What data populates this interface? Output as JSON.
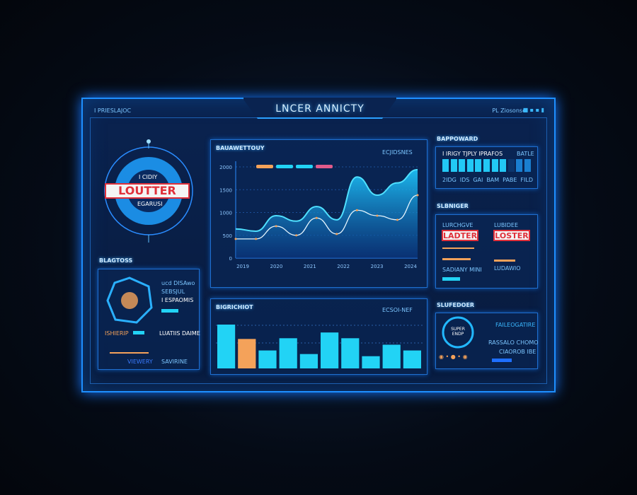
{
  "header": {
    "title": "LNCER ANNICTY",
    "left_label": "I PRIESLAJOC",
    "right_label": "PL Ziosonse"
  },
  "left": {
    "logo": {
      "top": "I CIDIY",
      "main": "LOUTTER",
      "bottom": "EGARUSI"
    },
    "section_title": "BLAGTOSS",
    "card": {
      "lines": [
        "ucd DISAwo",
        "SEBSJUL",
        "I ESPAOMIS"
      ],
      "bottom_left": "ISHIERIP",
      "bottom_right": "LUATIIS DAIME",
      "footer_left": "VIEWERY",
      "footer_right": "SAVIRINE"
    }
  },
  "line_chart": {
    "title": "BAUAWETTOUY",
    "legend": "ECJIDSNES"
  },
  "bar_chart": {
    "title": "BIGRICHIOT",
    "legend": "ECSOI-NEF"
  },
  "right": {
    "s1": {
      "title": "BAPPOWARD",
      "caption": "I IRIGY TJPLY IPRAFOS",
      "value": "BATLE",
      "ticks": [
        "2IDG",
        "IDS",
        "GAI",
        "BAM",
        "PABE",
        "FILD"
      ],
      "fill": 0.72
    },
    "s2": {
      "title": "SLBNIGER",
      "cards": [
        {
          "label": "LURCHGVE",
          "badge": "LADTER",
          "text": "SADIANY  MINI"
        },
        {
          "label": "LUBIDEE",
          "badge": "LOSTER",
          "text": "LUDAWIO"
        }
      ]
    },
    "s3": {
      "title": "SLUFEDOER",
      "ring": "SUPER ENDP",
      "headline": "FAILEOGATIRE",
      "line1": "RASSALO CHOMO",
      "line2": "CIAOROB IBE"
    }
  },
  "colors": {
    "accent": "#1e8fff",
    "cyan": "#22d3f5",
    "orange": "#f4a25a",
    "red": "#e0303a",
    "pink": "#e05a8a"
  },
  "chart_data": [
    {
      "type": "area",
      "title": "BAUAWETTOUY",
      "legend": "ECJIDSNES",
      "yticks": [
        "0",
        "500",
        "1000",
        "1500",
        "2000"
      ],
      "ylim": [
        0,
        2000
      ],
      "xticks": [
        "2019",
        "2020",
        "2021",
        "2022",
        "2023",
        "2024"
      ],
      "series": [
        {
          "values": [
            640,
            590,
            930,
            810,
            1130,
            840,
            1780,
            1380,
            1650,
            1940
          ]
        },
        {
          "values": [
            420,
            420,
            700,
            500,
            880,
            530,
            1050,
            930,
            840,
            1380
          ]
        }
      ]
    },
    {
      "type": "bar",
      "title": "BIGRICHIOT",
      "legend": "ECSOI-NEF",
      "values": [
        61,
        41,
        25,
        42,
        20,
        50,
        42,
        17,
        33,
        25
      ],
      "highlight_index": 1
    }
  ]
}
